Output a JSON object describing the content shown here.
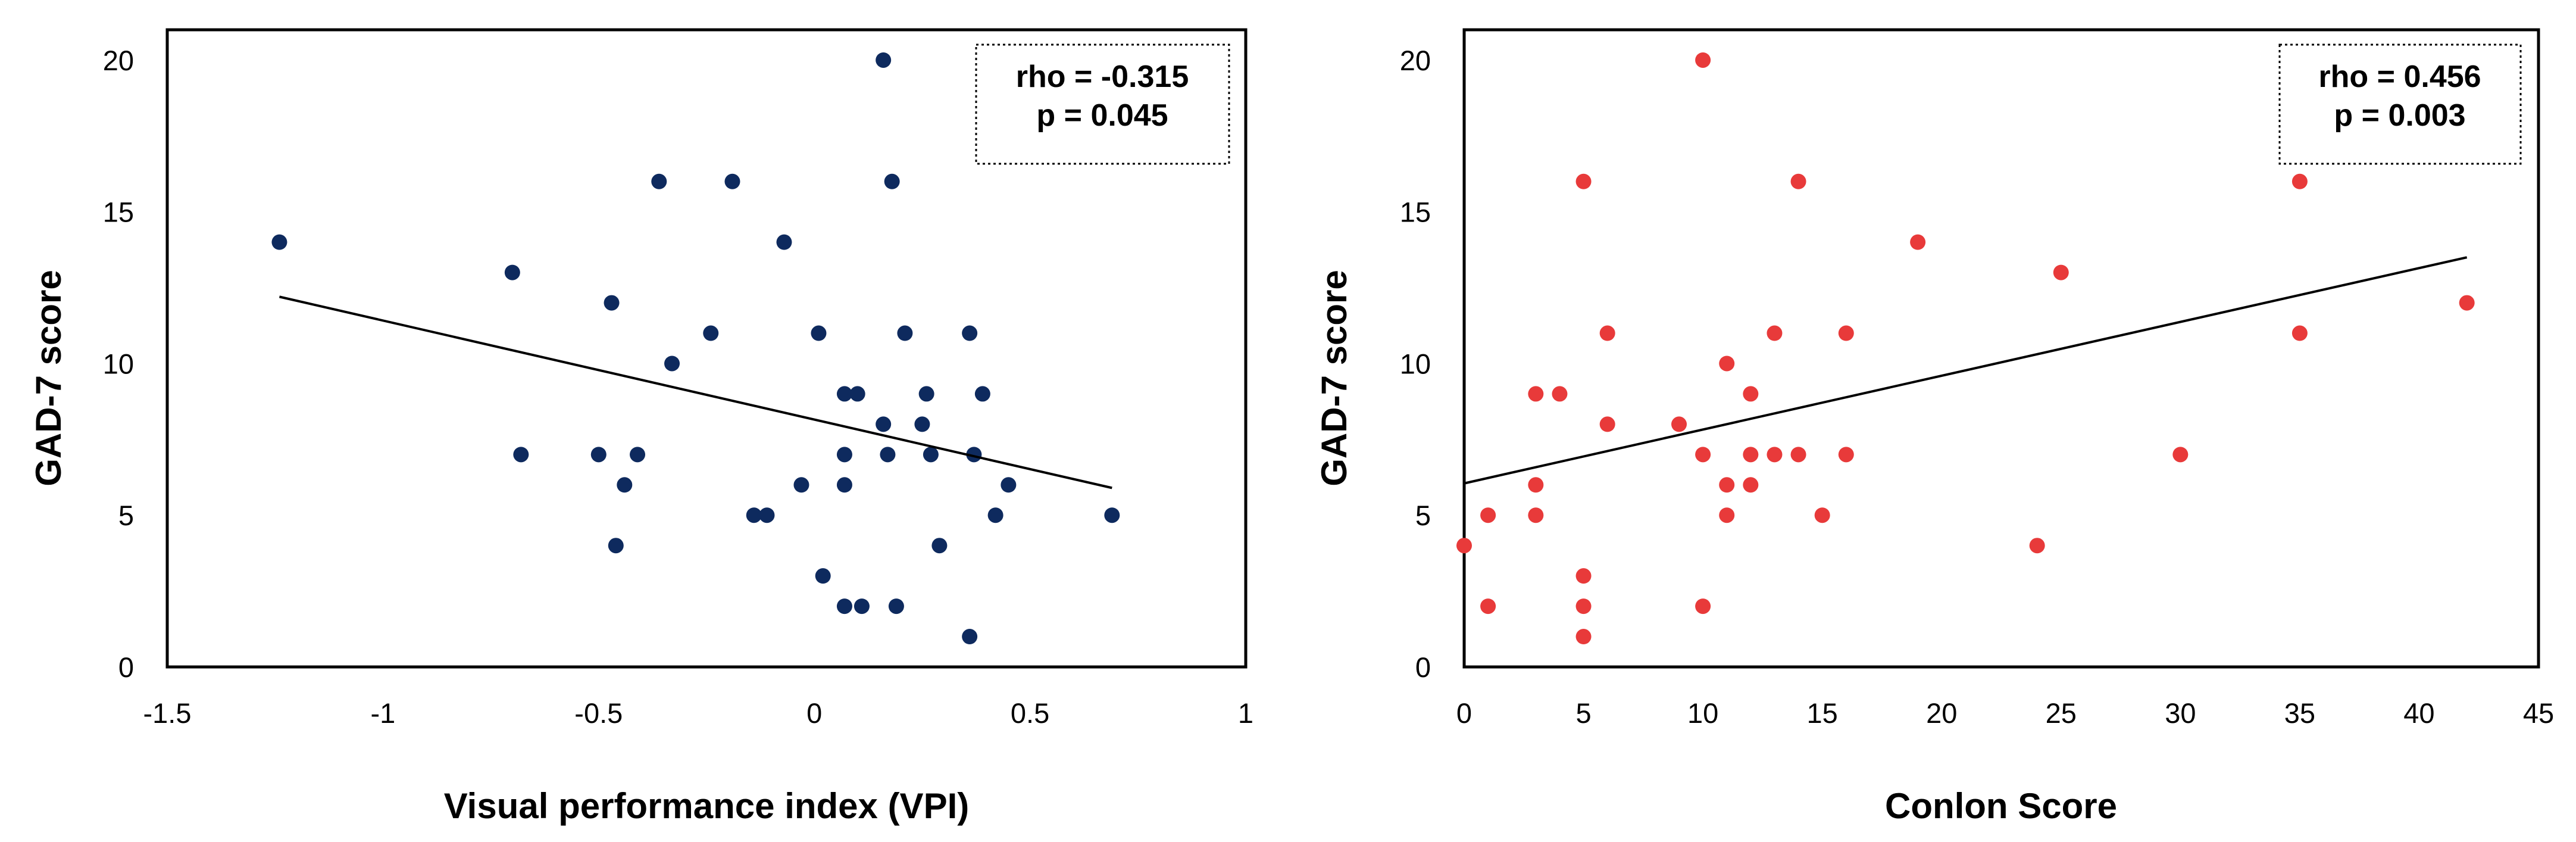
{
  "chart_data": [
    {
      "type": "scatter",
      "xlabel": "Visual performance index (VPI)",
      "ylabel": "GAD-7 score",
      "xlim": [
        -1.5,
        1
      ],
      "ylim": [
        0,
        21
      ],
      "xticks": [
        -1.5,
        -1,
        -0.5,
        0,
        0.5,
        1
      ],
      "xtick_labels": [
        "-1.5",
        "-1",
        "-0.5",
        "0",
        "0.5",
        "1"
      ],
      "yticks": [
        0,
        5,
        10,
        15,
        20
      ],
      "ytick_labels": [
        "0",
        "5",
        "10",
        "15",
        "20"
      ],
      "annotation": {
        "rho": "rho = -0.315",
        "p": "p = 0.045"
      },
      "color": "#0e2a5e",
      "trendline": {
        "x": [
          -1.24,
          0.69
        ],
        "y": [
          12.2,
          5.9
        ]
      },
      "points": [
        {
          "x": -1.24,
          "y": 14
        },
        {
          "x": -0.7,
          "y": 13
        },
        {
          "x": -0.68,
          "y": 7
        },
        {
          "x": -0.5,
          "y": 7
        },
        {
          "x": -0.47,
          "y": 12
        },
        {
          "x": -0.46,
          "y": 4
        },
        {
          "x": -0.44,
          "y": 6
        },
        {
          "x": -0.41,
          "y": 7
        },
        {
          "x": -0.36,
          "y": 16
        },
        {
          "x": -0.33,
          "y": 10
        },
        {
          "x": -0.24,
          "y": 11
        },
        {
          "x": -0.19,
          "y": 16
        },
        {
          "x": -0.14,
          "y": 5
        },
        {
          "x": -0.11,
          "y": 5
        },
        {
          "x": -0.07,
          "y": 14
        },
        {
          "x": -0.03,
          "y": 6
        },
        {
          "x": 0.01,
          "y": 11
        },
        {
          "x": 0.02,
          "y": 3
        },
        {
          "x": 0.07,
          "y": 9
        },
        {
          "x": 0.07,
          "y": 7
        },
        {
          "x": 0.07,
          "y": 6
        },
        {
          "x": 0.07,
          "y": 2
        },
        {
          "x": 0.1,
          "y": 9
        },
        {
          "x": 0.11,
          "y": 2
        },
        {
          "x": 0.16,
          "y": 20
        },
        {
          "x": 0.16,
          "y": 8
        },
        {
          "x": 0.17,
          "y": 7
        },
        {
          "x": 0.18,
          "y": 16
        },
        {
          "x": 0.19,
          "y": 2
        },
        {
          "x": 0.21,
          "y": 11
        },
        {
          "x": 0.25,
          "y": 8
        },
        {
          "x": 0.26,
          "y": 9
        },
        {
          "x": 0.27,
          "y": 7
        },
        {
          "x": 0.29,
          "y": 4
        },
        {
          "x": 0.36,
          "y": 11
        },
        {
          "x": 0.36,
          "y": 1
        },
        {
          "x": 0.37,
          "y": 7
        },
        {
          "x": 0.39,
          "y": 9
        },
        {
          "x": 0.42,
          "y": 5
        },
        {
          "x": 0.45,
          "y": 6
        },
        {
          "x": 0.69,
          "y": 5
        }
      ]
    },
    {
      "type": "scatter",
      "xlabel": "Conlon Score",
      "ylabel": "GAD-7 score",
      "xlim": [
        0,
        45
      ],
      "ylim": [
        0,
        21
      ],
      "xticks": [
        0,
        5,
        10,
        15,
        20,
        25,
        30,
        35,
        40,
        45
      ],
      "xtick_labels": [
        "0",
        "5",
        "10",
        "15",
        "20",
        "25",
        "30",
        "35",
        "40",
        "45"
      ],
      "yticks": [
        0,
        5,
        10,
        15,
        20
      ],
      "ytick_labels": [
        "0",
        "5",
        "10",
        "15",
        "20"
      ],
      "annotation": {
        "rho": "rho = 0.456",
        "p": "p = 0.003"
      },
      "color": "#e83a3a",
      "trendline": {
        "x": [
          0,
          42
        ],
        "y": [
          6.05,
          13.5
        ]
      },
      "points": [
        {
          "x": 0,
          "y": 4
        },
        {
          "x": 1,
          "y": 5
        },
        {
          "x": 1,
          "y": 2
        },
        {
          "x": 3,
          "y": 9
        },
        {
          "x": 3,
          "y": 6
        },
        {
          "x": 3,
          "y": 5
        },
        {
          "x": 4,
          "y": 9
        },
        {
          "x": 5,
          "y": 16
        },
        {
          "x": 5,
          "y": 3
        },
        {
          "x": 5,
          "y": 2
        },
        {
          "x": 5,
          "y": 1
        },
        {
          "x": 6,
          "y": 11
        },
        {
          "x": 6,
          "y": 8
        },
        {
          "x": 9,
          "y": 8
        },
        {
          "x": 10,
          "y": 20
        },
        {
          "x": 10,
          "y": 7
        },
        {
          "x": 10,
          "y": 2
        },
        {
          "x": 11,
          "y": 10
        },
        {
          "x": 11,
          "y": 6
        },
        {
          "x": 11,
          "y": 5
        },
        {
          "x": 12,
          "y": 9
        },
        {
          "x": 12,
          "y": 7
        },
        {
          "x": 12,
          "y": 6
        },
        {
          "x": 13,
          "y": 11
        },
        {
          "x": 13,
          "y": 7
        },
        {
          "x": 14,
          "y": 16
        },
        {
          "x": 14,
          "y": 7
        },
        {
          "x": 15,
          "y": 5
        },
        {
          "x": 16,
          "y": 11
        },
        {
          "x": 16,
          "y": 7
        },
        {
          "x": 19,
          "y": 14
        },
        {
          "x": 24,
          "y": 4
        },
        {
          "x": 25,
          "y": 13
        },
        {
          "x": 30,
          "y": 7
        },
        {
          "x": 35,
          "y": 16
        },
        {
          "x": 35,
          "y": 11
        },
        {
          "x": 42,
          "y": 12
        }
      ]
    }
  ]
}
